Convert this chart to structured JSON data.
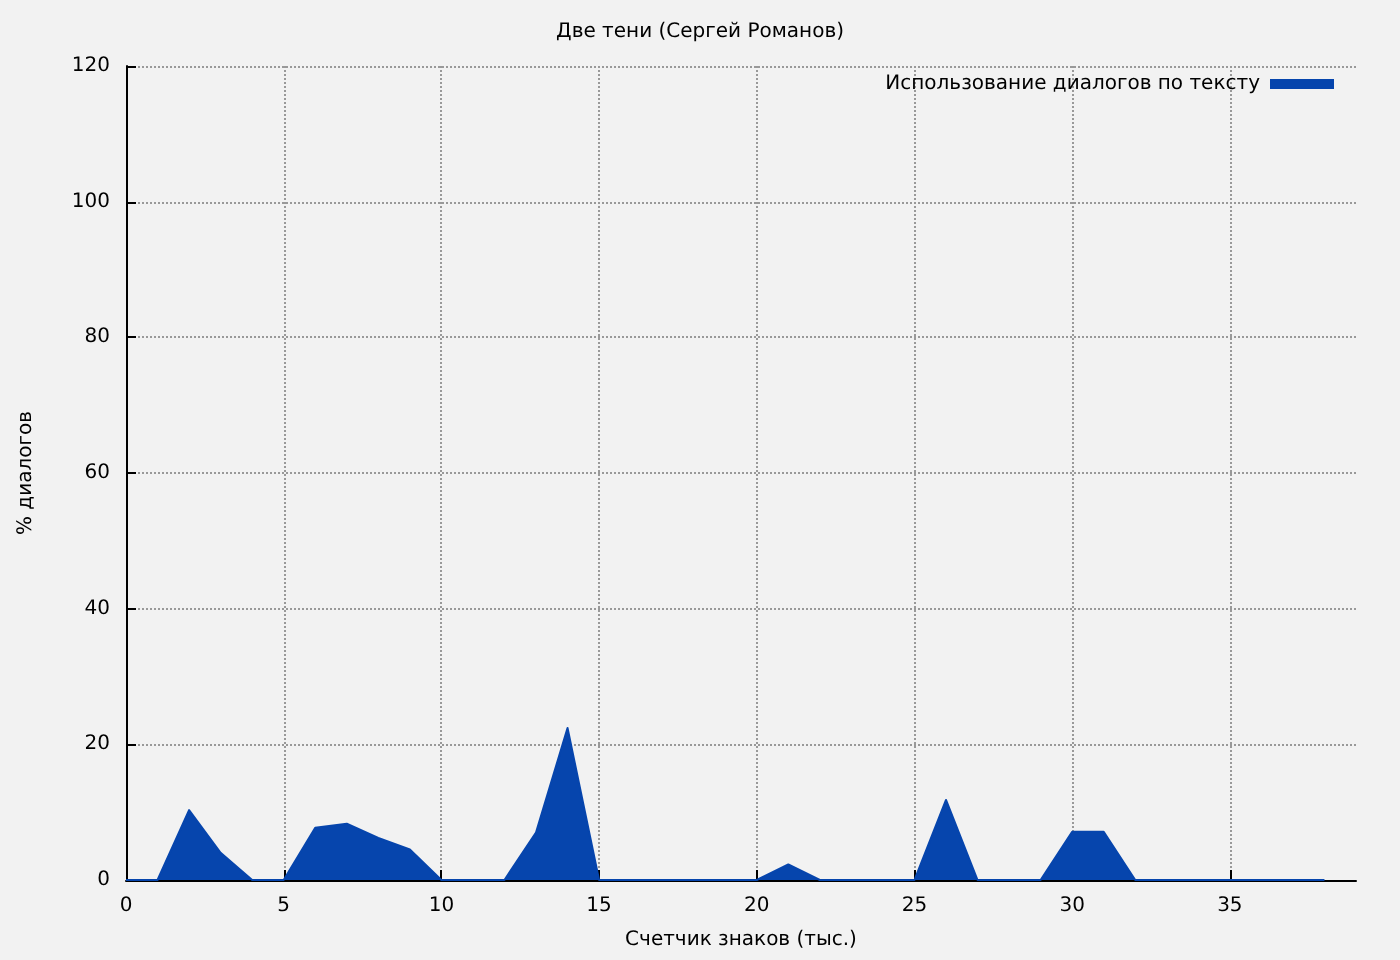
{
  "chart_data": {
    "type": "area",
    "title": "Две тени (Сергей Романов)",
    "xlabel": "Счетчик знаков (тыс.)",
    "ylabel": "% диалогов",
    "x": [
      0,
      1,
      2,
      3,
      4,
      5,
      6,
      7,
      8,
      9,
      10,
      11,
      12,
      13,
      14,
      15,
      16,
      17,
      18,
      19,
      20,
      21,
      22,
      23,
      24,
      25,
      26,
      27,
      28,
      29,
      30,
      31,
      32,
      33,
      34,
      35,
      36,
      37,
      38
    ],
    "series": [
      {
        "name": "Использование диалогов по тексту",
        "color": "#0645ad",
        "values": [
          0,
          0,
          10.3,
          4,
          0,
          0,
          7.7,
          8.3,
          6.2,
          4.5,
          0,
          0,
          0,
          7,
          22.4,
          0,
          0,
          0,
          0,
          0,
          0,
          2.3,
          0,
          0,
          0,
          0,
          11.8,
          0,
          0,
          0,
          7.1,
          7.1,
          0,
          0,
          0,
          0,
          0,
          0,
          0
        ]
      }
    ],
    "xlim": [
      0,
      39
    ],
    "ylim": [
      0,
      120
    ],
    "xticks": [
      0,
      5,
      10,
      15,
      20,
      25,
      30,
      35
    ],
    "yticks": [
      0,
      20,
      40,
      60,
      80,
      100,
      120
    ],
    "grid": true,
    "legend": "top right",
    "marker": "none"
  }
}
